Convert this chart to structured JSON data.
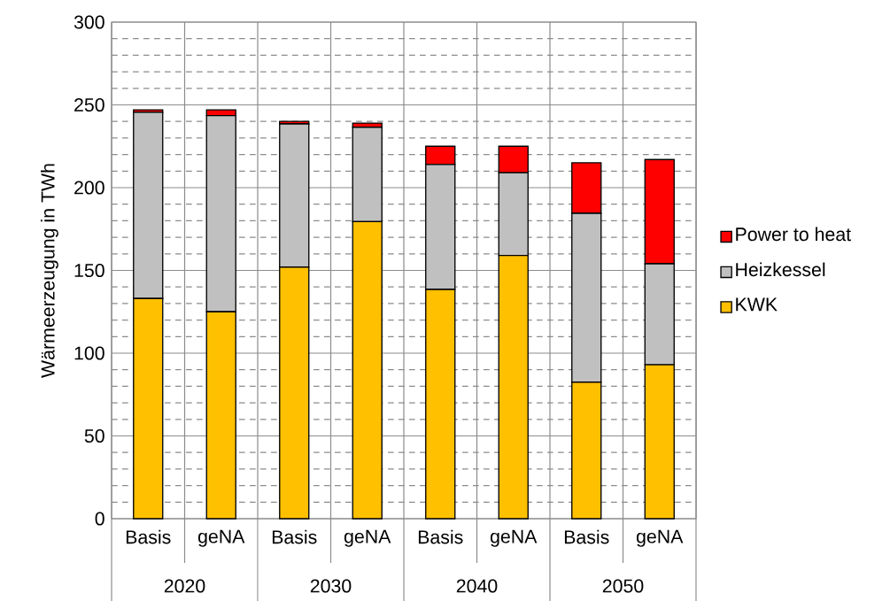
{
  "chart_data": {
    "type": "bar",
    "stacked": true,
    "ylabel": "Wärmeerzeugung in TWh",
    "categories": [
      "Basis",
      "geNA",
      "Basis",
      "geNA",
      "Basis",
      "geNA",
      "Basis",
      "geNA"
    ],
    "annotations": [
      "2020",
      "2030",
      "2040",
      "2050"
    ],
    "series": [
      {
        "name": "KWK",
        "color": "#ffc000",
        "values": [
          133,
          125,
          152,
          179.5,
          138.5,
          159,
          82.5,
          93
        ]
      },
      {
        "name": "Heizkessel",
        "color": "#c0c0c0",
        "values": [
          112.5,
          118.5,
          86.5,
          57,
          75.5,
          50,
          102,
          61
        ]
      },
      {
        "name": "Power to heat",
        "color": "#ff0000",
        "values": [
          1.5,
          3.5,
          1.5,
          2.5,
          11,
          16,
          30.5,
          63
        ]
      }
    ],
    "ylim": [
      0,
      300
    ],
    "yticks": [
      0,
      50,
      100,
      150,
      200,
      250,
      300
    ],
    "grid": true,
    "legend": "right"
  }
}
